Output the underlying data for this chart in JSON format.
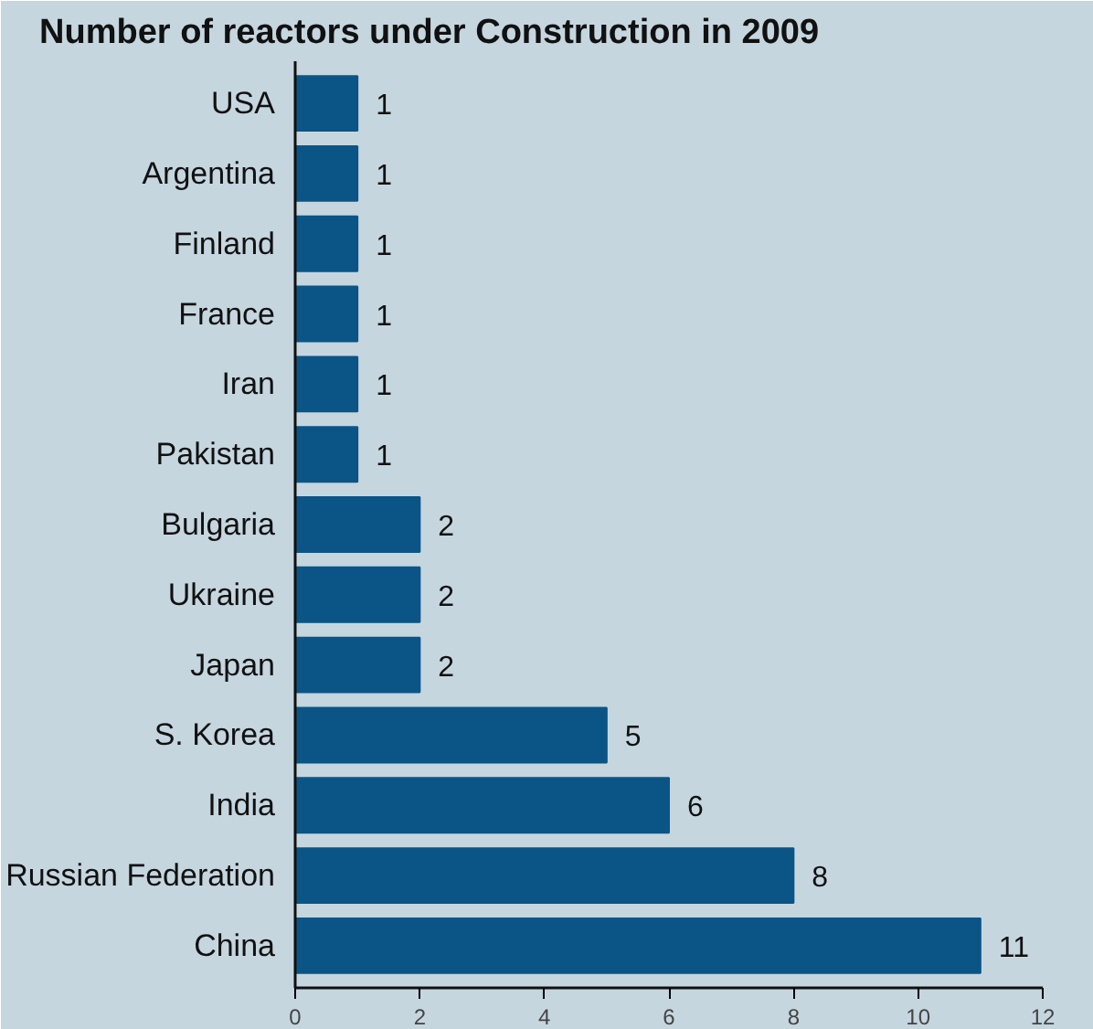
{
  "chart_data": {
    "type": "bar",
    "orientation": "horizontal",
    "title": "Number of reactors under Construction in 2009",
    "categories": [
      "USA",
      "Argentina",
      "Finland",
      "France",
      "Iran",
      "Pakistan",
      "Bulgaria",
      "Ukraine",
      "Japan",
      "S. Korea",
      "India",
      "Russian Federation",
      "China"
    ],
    "values": [
      1,
      1,
      1,
      1,
      1,
      1,
      2,
      2,
      2,
      5,
      6,
      8,
      11
    ],
    "color": "#0b5586",
    "xlim": [
      0,
      12
    ],
    "xticks": [
      0,
      2,
      4,
      6,
      8,
      10,
      12
    ],
    "data_labels": true,
    "grid": false
  }
}
